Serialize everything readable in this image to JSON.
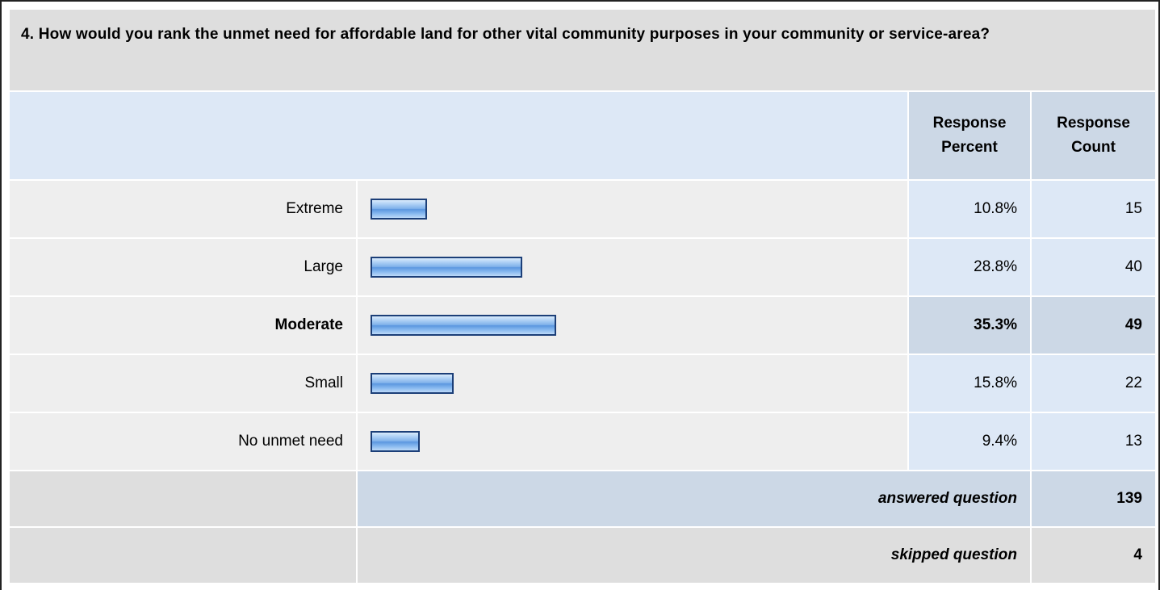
{
  "question": {
    "title": "4. How would you rank the unmet need for affordable land for other vital community purposes in your community or service-area?"
  },
  "headers": {
    "percent_line1": "Response",
    "percent_line2": "Percent",
    "count_line1": "Response",
    "count_line2": "Count"
  },
  "chart_data": {
    "type": "bar",
    "orientation": "horizontal",
    "categories": [
      "Extreme",
      "Large",
      "Moderate",
      "Small",
      "No unmet need"
    ],
    "values": [
      10.8,
      28.8,
      35.3,
      15.8,
      9.4
    ],
    "percent_labels": [
      "10.8%",
      "28.8%",
      "35.3%",
      "15.8%",
      "9.4%"
    ],
    "counts": [
      "15",
      "40",
      "49",
      "22",
      "13"
    ],
    "highlighted_category": "Moderate",
    "xlim": [
      0,
      100
    ],
    "bar_color": "#7fb1ea",
    "bar_border_color": "#1c3f78"
  },
  "footer": {
    "answered_label": "answered question",
    "answered_value": "139",
    "skipped_label": "skipped question",
    "skipped_value": "4"
  },
  "colors": {
    "title_bg": "#dedede",
    "header_bg": "#dde8f6",
    "header_cell_bg": "#ccd8e6",
    "row_bg": "#eeeeee"
  }
}
